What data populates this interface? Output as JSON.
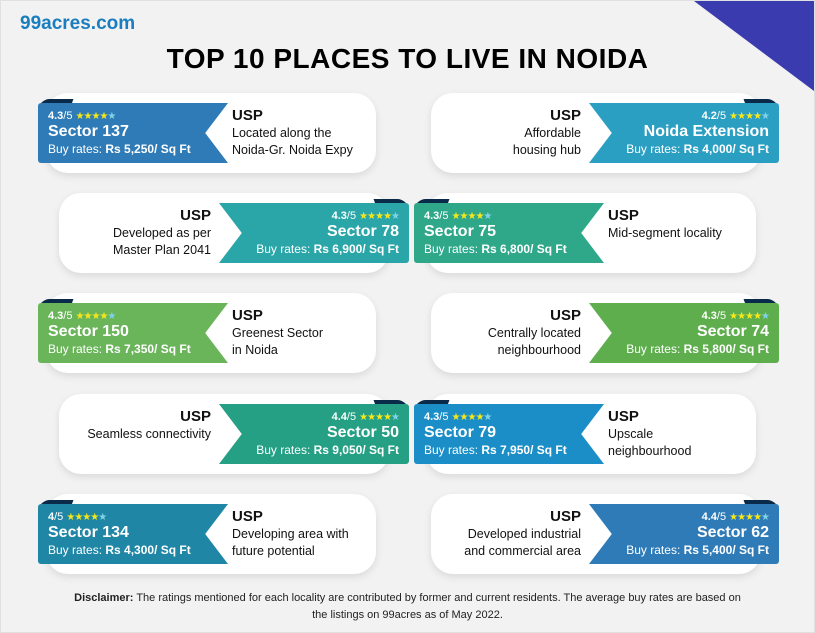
{
  "header": {
    "logo": "99acres.com",
    "title": "TOP 10 PLACES TO LIVE IN NOIDA"
  },
  "colors": {
    "sector137": "#2f7bb8",
    "noidaExtension": "#2b9fc2",
    "sector78": "#2aa6a8",
    "sector75": "#2fa88a",
    "sector150": "#6ab55a",
    "sector74": "#5fae4e",
    "sector50": "#25a084",
    "sector79": "#1b8ec7",
    "sector134": "#1f86a5",
    "sector62": "#2f7bb8",
    "corner": "#3b3bb0"
  },
  "places": [
    {
      "rating": "4.3",
      "out_of": "/5",
      "stars": "★★★★",
      "half": "★",
      "name": "Sector 137",
      "rate_label": "Buy rates:",
      "rate_value": "Rs 5,250/ Sq Ft",
      "usp_heading": "USP",
      "usp_line1": "Located along the",
      "usp_line2": "Noida-Gr. Noida Expy"
    },
    {
      "rating": "4.2",
      "out_of": "/5",
      "stars": "★★★★",
      "half": "★",
      "name": "Noida Extension",
      "rate_label": "Buy rates:",
      "rate_value": "Rs 4,000/ Sq Ft",
      "usp_heading": "USP",
      "usp_line1": "Affordable",
      "usp_line2": "housing hub"
    },
    {
      "rating": "4.3",
      "out_of": "/5",
      "stars": "★★★★",
      "half": "★",
      "name": "Sector 78",
      "rate_label": "Buy rates:",
      "rate_value": "Rs 6,900/ Sq Ft",
      "usp_heading": "USP",
      "usp_line1": "Developed as per",
      "usp_line2": "Master Plan 2041"
    },
    {
      "rating": "4.3",
      "out_of": "/5",
      "stars": "★★★★",
      "half": "★",
      "name": "Sector 75",
      "rate_label": "Buy rates:",
      "rate_value": "Rs 6,800/ Sq Ft",
      "usp_heading": "USP",
      "usp_line1": "Mid-segment locality",
      "usp_line2": ""
    },
    {
      "rating": "4.3",
      "out_of": "/5",
      "stars": "★★★★",
      "half": "★",
      "name": "Sector 150",
      "rate_label": "Buy rates:",
      "rate_value": "Rs 7,350/ Sq Ft",
      "usp_heading": "USP",
      "usp_line1": "Greenest Sector",
      "usp_line2": "in Noida"
    },
    {
      "rating": "4.3",
      "out_of": "/5",
      "stars": "★★★★",
      "half": "★",
      "name": "Sector 74",
      "rate_label": "Buy rates:",
      "rate_value": "Rs 5,800/ Sq Ft",
      "usp_heading": "USP",
      "usp_line1": "Centrally located",
      "usp_line2": "neighbourhood"
    },
    {
      "rating": "4.4",
      "out_of": "/5",
      "stars": "★★★★",
      "half": "★",
      "name": "Sector 50",
      "rate_label": "Buy rates:",
      "rate_value": "Rs 9,050/ Sq Ft",
      "usp_heading": "USP",
      "usp_line1": "Seamless connectivity",
      "usp_line2": ""
    },
    {
      "rating": "4.3",
      "out_of": "/5",
      "stars": "★★★★",
      "half": "★",
      "name": "Sector 79",
      "rate_label": "Buy rates:",
      "rate_value": "Rs 7,950/ Sq Ft",
      "usp_heading": "USP",
      "usp_line1": "Upscale",
      "usp_line2": "neighbourhood"
    },
    {
      "rating": "4",
      "out_of": "/5",
      "stars": "★★★★",
      "half": "★",
      "name": "Sector 134",
      "rate_label": "Buy rates:",
      "rate_value": "Rs 4,300/ Sq Ft",
      "usp_heading": "USP",
      "usp_line1": "Developing area with",
      "usp_line2": "future potential"
    },
    {
      "rating": "4.4",
      "out_of": "/5",
      "stars": "★★★★",
      "half": "★",
      "name": "Sector 62",
      "rate_label": "Buy rates:",
      "rate_value": "Rs 5,400/ Sq Ft",
      "usp_heading": "USP",
      "usp_line1": "Developed industrial",
      "usp_line2": "and commercial area"
    }
  ],
  "disclaimer": {
    "label": "Disclaimer:",
    "text": "The ratings mentioned for each locality are contributed by former and current residents. The average buy rates are based on the listings on 99acres as of May 2022."
  }
}
